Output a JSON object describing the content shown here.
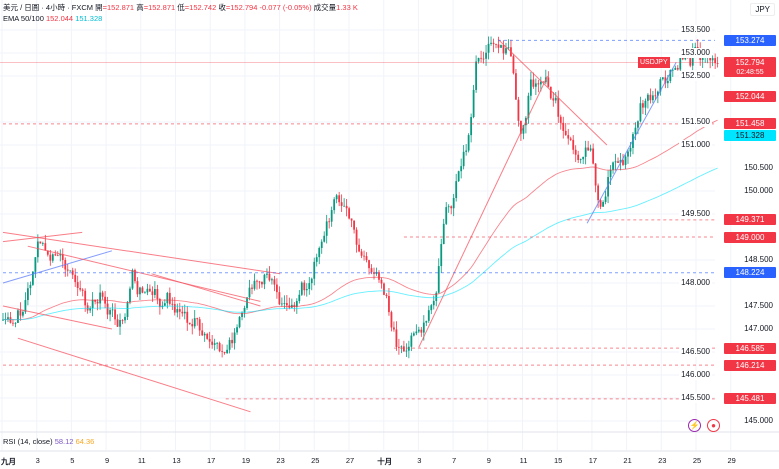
{
  "header": {
    "symbol": "美元 / 日圓 · 4小時 · FXCM",
    "open_label": "開",
    "open": "=152.871",
    "high_label": "高",
    "high": "=152.871",
    "low_label": "低",
    "low": "=152.742",
    "close_label": "收",
    "close": "=152.794",
    "change": "-0.077 (-0.05%)",
    "volume_label": "成交量",
    "volume": "1.33 K"
  },
  "ema": {
    "label": "EMA 50/100",
    "v50": "152.044",
    "v100": "151.328"
  },
  "rsi": {
    "label": "RSI (14, close)",
    "v1": "58.12",
    "v2": "64.36"
  },
  "currency": "JPY",
  "current": {
    "symbol": "USDJPY",
    "price": "152.794",
    "countdown": "02:48:55"
  },
  "price_ticks": [
    "153.500",
    "153.000",
    "152.500",
    "151.500",
    "151.000",
    "150.500",
    "150.000",
    "149.500",
    "148.500",
    "148.000",
    "147.500",
    "147.000",
    "146.500",
    "146.000",
    "145.500",
    "145.000"
  ],
  "levels": [
    {
      "label": "153.274",
      "price": 153.274,
      "color": "#2962ff",
      "from": 100
    },
    {
      "label": "151.458",
      "price": 151.458,
      "color": "#f23645",
      "from": 0
    },
    {
      "label": "149.371",
      "price": 149.371,
      "color": "#f23645",
      "from": 114
    },
    {
      "label": "149.000",
      "price": 149.0,
      "color": "#f23645",
      "from": 81
    },
    {
      "label": "148.224",
      "price": 148.224,
      "color": "#2962ff",
      "from": 0
    },
    {
      "label": "146.585",
      "price": 146.585,
      "color": "#f23645",
      "from": 79
    },
    {
      "label": "146.214",
      "price": 146.214,
      "color": "#f23645",
      "from": 0
    },
    {
      "label": "145.481",
      "price": 145.481,
      "color": "#f23645",
      "from": 45
    }
  ],
  "time_ticks": [
    "九月",
    "3",
    "5",
    "9",
    "11",
    "13",
    "17",
    "19",
    "23",
    "25",
    "27",
    "十月",
    "3",
    "7",
    "9",
    "11",
    "15",
    "17",
    "21",
    "23",
    "25",
    "29"
  ],
  "colors": {
    "up": "#089981",
    "down": "#f23645",
    "ema50": "#f23645",
    "ema100": "#00e5ff"
  },
  "chart_data": {
    "type": "candlestick",
    "title": "USDJPY 4H",
    "ylim": [
      144.6,
      153.8
    ],
    "key_closes": [
      [
        0,
        147.1
      ],
      [
        4,
        147.5
      ],
      [
        7,
        148.8
      ],
      [
        10,
        148.6
      ],
      [
        14,
        148.2
      ],
      [
        17,
        147.4
      ],
      [
        20,
        147.8
      ],
      [
        23,
        146.9
      ],
      [
        26,
        148.0
      ],
      [
        30,
        147.8
      ],
      [
        34,
        147.5
      ],
      [
        38,
        147.2
      ],
      [
        42,
        146.8
      ],
      [
        45,
        146.4
      ],
      [
        47,
        147.2
      ],
      [
        50,
        147.9
      ],
      [
        53,
        148.3
      ],
      [
        56,
        147.6
      ],
      [
        59,
        147.5
      ],
      [
        62,
        148.2
      ],
      [
        65,
        149.2
      ],
      [
        67,
        149.9
      ],
      [
        69,
        149.7
      ],
      [
        71,
        148.9
      ],
      [
        74,
        148.2
      ],
      [
        77,
        147.5
      ],
      [
        79,
        146.6
      ],
      [
        82,
        146.8
      ],
      [
        85,
        147.3
      ],
      [
        87,
        147.7
      ],
      [
        88,
        149.0
      ],
      [
        90,
        149.9
      ],
      [
        93,
        151.0
      ],
      [
        95,
        152.6
      ],
      [
        97,
        153.0
      ],
      [
        100,
        153.2
      ],
      [
        102,
        152.9
      ],
      [
        104,
        151.3
      ],
      [
        106,
        152.3
      ],
      [
        109,
        152.4
      ],
      [
        111,
        151.8
      ],
      [
        114,
        151.3
      ],
      [
        116,
        150.7
      ],
      [
        118,
        150.8
      ],
      [
        120,
        149.6
      ],
      [
        122,
        150.6
      ],
      [
        125,
        150.8
      ],
      [
        127,
        151.4
      ],
      [
        129,
        152.1
      ],
      [
        132,
        152.4
      ],
      [
        135,
        152.8
      ],
      [
        138,
        153.0
      ],
      [
        141,
        152.9
      ],
      [
        143,
        152.8
      ]
    ],
    "trendlines": [
      [
        0,
        148.9,
        16,
        149.1
      ],
      [
        0,
        148.0,
        22,
        148.7
      ],
      [
        0,
        147.5,
        22,
        147.0
      ],
      [
        0,
        149.1,
        56,
        148.2
      ],
      [
        5,
        148.8,
        52,
        147.6
      ],
      [
        30,
        148.2,
        52,
        147.5
      ],
      [
        3,
        146.8,
        50,
        145.2
      ],
      [
        84,
        146.6,
        110,
        152.5
      ],
      [
        100,
        153.3,
        122,
        151.0
      ],
      [
        118,
        149.3,
        136,
        152.8
      ]
    ]
  }
}
